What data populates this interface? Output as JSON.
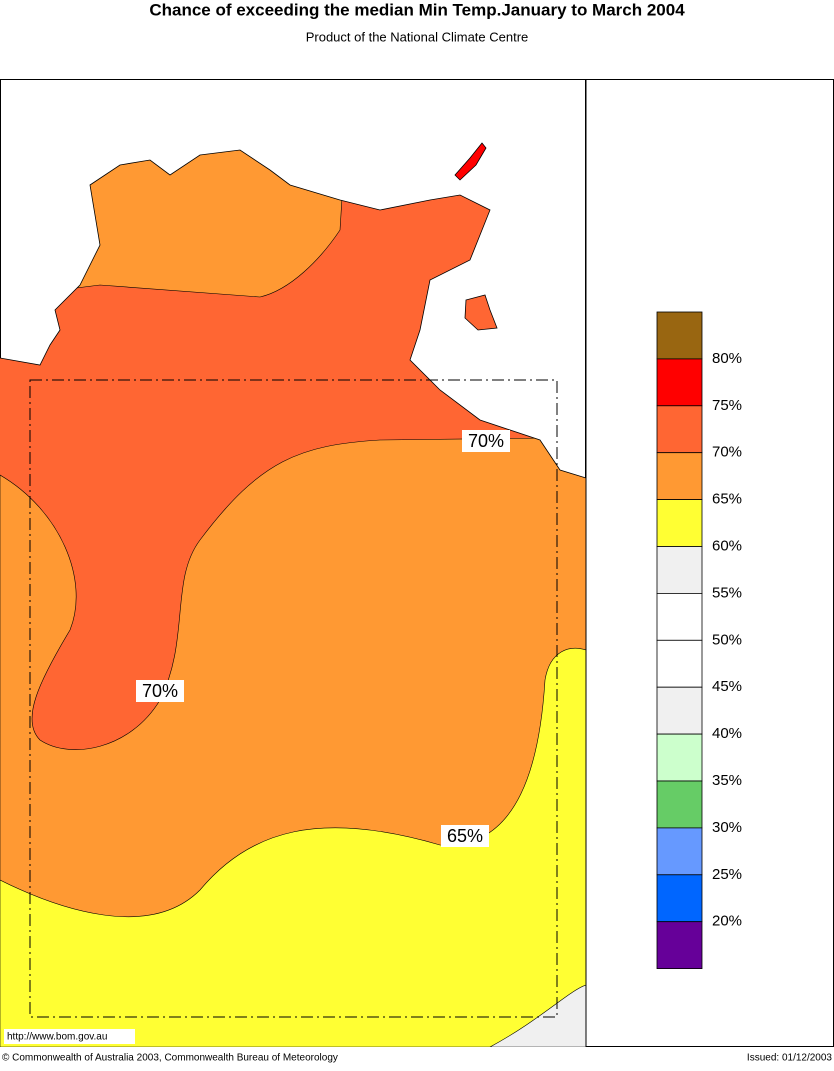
{
  "header": {
    "title": "Chance of exceeding the median Min Temp.January to March 2004",
    "subtitle": "Product of the National Climate Centre"
  },
  "map": {
    "contour_labels": [
      "70%",
      "70%",
      "65%"
    ],
    "url": "http://www.bom.gov.au"
  },
  "legend": {
    "labels": [
      "80%",
      "75%",
      "70%",
      "65%",
      "60%",
      "55%",
      "50%",
      "45%",
      "40%",
      "35%",
      "30%",
      "25%",
      "20%"
    ],
    "colors": [
      "#996611",
      "#ff0000",
      "#ff6633",
      "#ff9933",
      "#ffff33",
      "#f0f0f0",
      "#ffffff",
      "#ffffff",
      "#f0f0f0",
      "#ccffcc",
      "#66cc66",
      "#6699ff",
      "#0066ff",
      "#660099"
    ]
  },
  "footer": {
    "copyright": "© Commonwealth of Australia 2003, Commonwealth Bureau of Meteorology",
    "issued": "Issued: 01/12/2003"
  }
}
